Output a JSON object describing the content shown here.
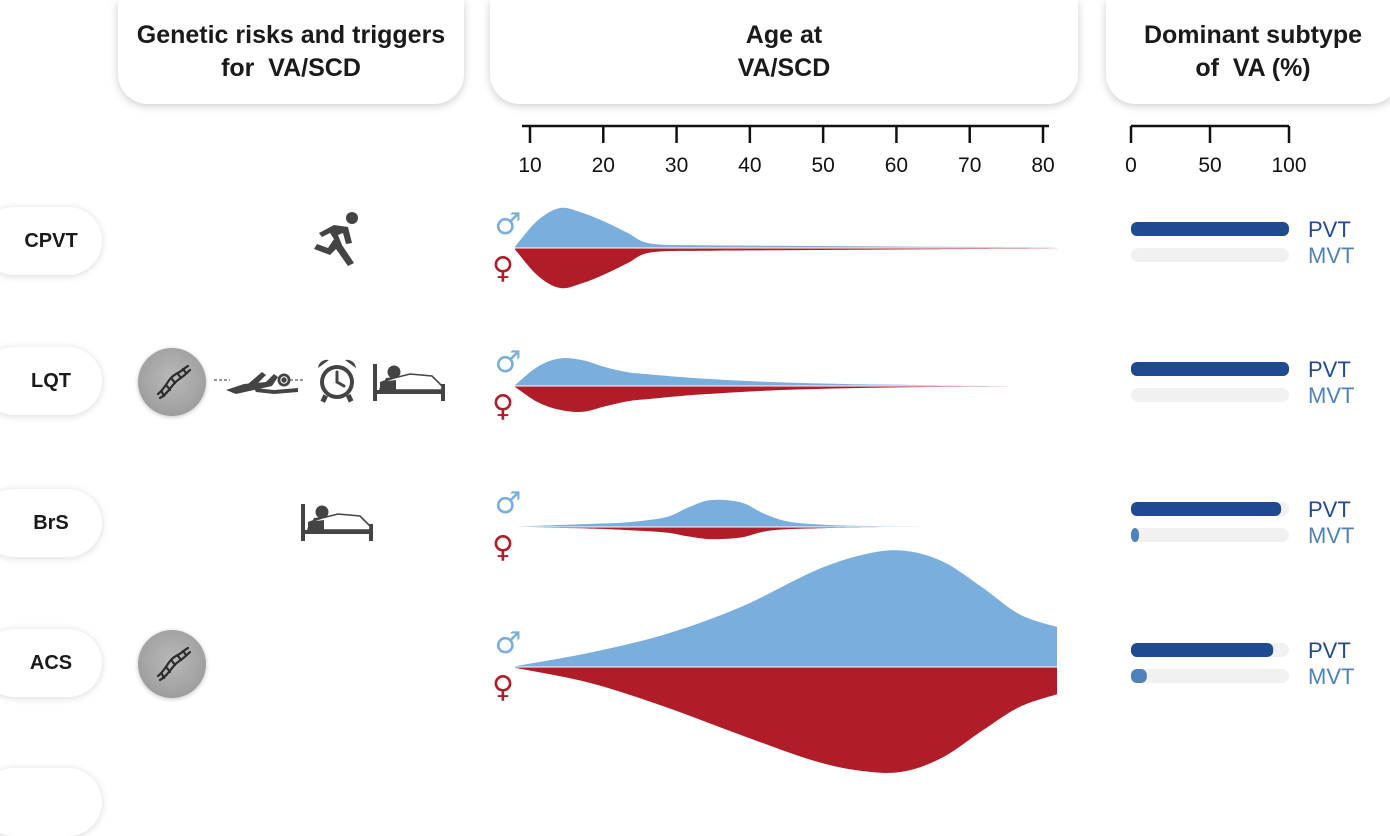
{
  "headers": {
    "genetic": {
      "line1": "Genetic risks and triggers",
      "line2": "for  VA/SCD"
    },
    "age": {
      "line1": "Age at",
      "line2": "VA/SCD"
    },
    "subtype": {
      "line1": "Dominant subtype",
      "line2": "of  VA (%)"
    }
  },
  "rows": [
    {
      "label": "CPVT",
      "icons": [
        "runner-icon"
      ]
    },
    {
      "label": "LQT",
      "icons": [
        "dna-icon",
        "swimmer-icon",
        "alarm-clock-icon",
        "bed-icon"
      ]
    },
    {
      "label": "BrS",
      "icons": [
        "bed-icon"
      ]
    },
    {
      "label": "ACS",
      "icons": [
        "dna-icon"
      ]
    },
    {
      "label": ""
    }
  ],
  "colors": {
    "male": "#7aaedc",
    "female": "#b01c27",
    "pvt": "#1e4b8f",
    "mvt": "#4f82ba",
    "track": "#f1f1f1"
  },
  "symbols": {
    "male": "♂",
    "female": "♀"
  },
  "chart_data": [
    {
      "type": "area",
      "title": "Age at VA/SCD",
      "xlabel": "",
      "ylabel": "",
      "xlim": [
        10,
        82
      ],
      "xticks": [
        10,
        20,
        30,
        40,
        50,
        60,
        70,
        80
      ],
      "grid": false,
      "legend": "none",
      "x": [
        10,
        13,
        16,
        19,
        22,
        25,
        28,
        35,
        45,
        55,
        65,
        75,
        82
      ],
      "series_note_symbols": [
        "male",
        "female"
      ],
      "panels": [
        {
          "row": "CPVT",
          "series": [
            {
              "name": "male",
              "values": [
                0.3,
                5.5,
                8.0,
                7.0,
                5.2,
                3.0,
                0.9,
                0.55,
                0.45,
                0.35,
                0.25,
                0.18,
                0.12
              ]
            },
            {
              "name": "female",
              "values": [
                0.3,
                5.5,
                8.0,
                7.0,
                5.2,
                3.0,
                0.9,
                0.55,
                0.45,
                0.35,
                0.25,
                0.18,
                0.12
              ]
            }
          ]
        },
        {
          "row": "LQT",
          "series": [
            {
              "name": "male",
              "values": [
                0.2,
                4.2,
                6.0,
                5.6,
                4.1,
                3.0,
                2.5,
                1.6,
                0.8,
                0.4,
                0.2,
                0.1,
                0.06
              ]
            },
            {
              "name": "female",
              "values": [
                0.2,
                3.5,
                5.2,
                5.6,
                4.4,
                3.3,
                2.8,
                1.8,
                0.9,
                0.45,
                0.22,
                0.12,
                0.06
              ]
            }
          ]
        },
        {
          "row": "BrS",
          "x": [
            10,
            20,
            25,
            30,
            33,
            36,
            40,
            43,
            46,
            50,
            55,
            65,
            82
          ],
          "series": [
            {
              "name": "male",
              "values": [
                0.1,
                0.8,
                1.2,
                2.5,
                5.0,
                6.9,
                6.3,
                3.5,
                1.5,
                0.7,
                0.3,
                0.12,
                0.08
              ]
            },
            {
              "name": "female",
              "values": [
                0.1,
                0.4,
                0.8,
                1.4,
                2.4,
                3.1,
                2.7,
                1.2,
                0.6,
                0.35,
                0.2,
                0.1,
                0.05
              ]
            }
          ]
        },
        {
          "row": "ACS",
          "x": [
            10,
            20,
            30,
            40,
            50,
            57,
            62,
            67,
            72,
            77,
            82
          ],
          "series": [
            {
              "name": "male",
              "values": [
                0.1,
                1.8,
                4.1,
                7.5,
                12.1,
                14.2,
                14.5,
                13.1,
                10.0,
                6.6,
                5.0
              ]
            },
            {
              "name": "female",
              "values": [
                0.1,
                2.0,
                5.0,
                8.5,
                11.8,
                13.1,
                13.0,
                11.2,
                8.0,
                5.0,
                3.4
              ]
            }
          ]
        }
      ]
    },
    {
      "type": "bar",
      "title": "Dominant subtype of VA (%)",
      "xlabel": "",
      "ylabel": "",
      "xlim": [
        0,
        100
      ],
      "xticks": [
        0,
        50,
        100
      ],
      "grid": false,
      "legend": "none",
      "categories": [
        "CPVT",
        "LQT",
        "BrS",
        "ACS"
      ],
      "series": [
        {
          "name": "PVT",
          "values": [
            100,
            100,
            95,
            90
          ]
        },
        {
          "name": "MVT",
          "values": [
            0,
            0,
            5,
            10
          ]
        }
      ]
    }
  ]
}
